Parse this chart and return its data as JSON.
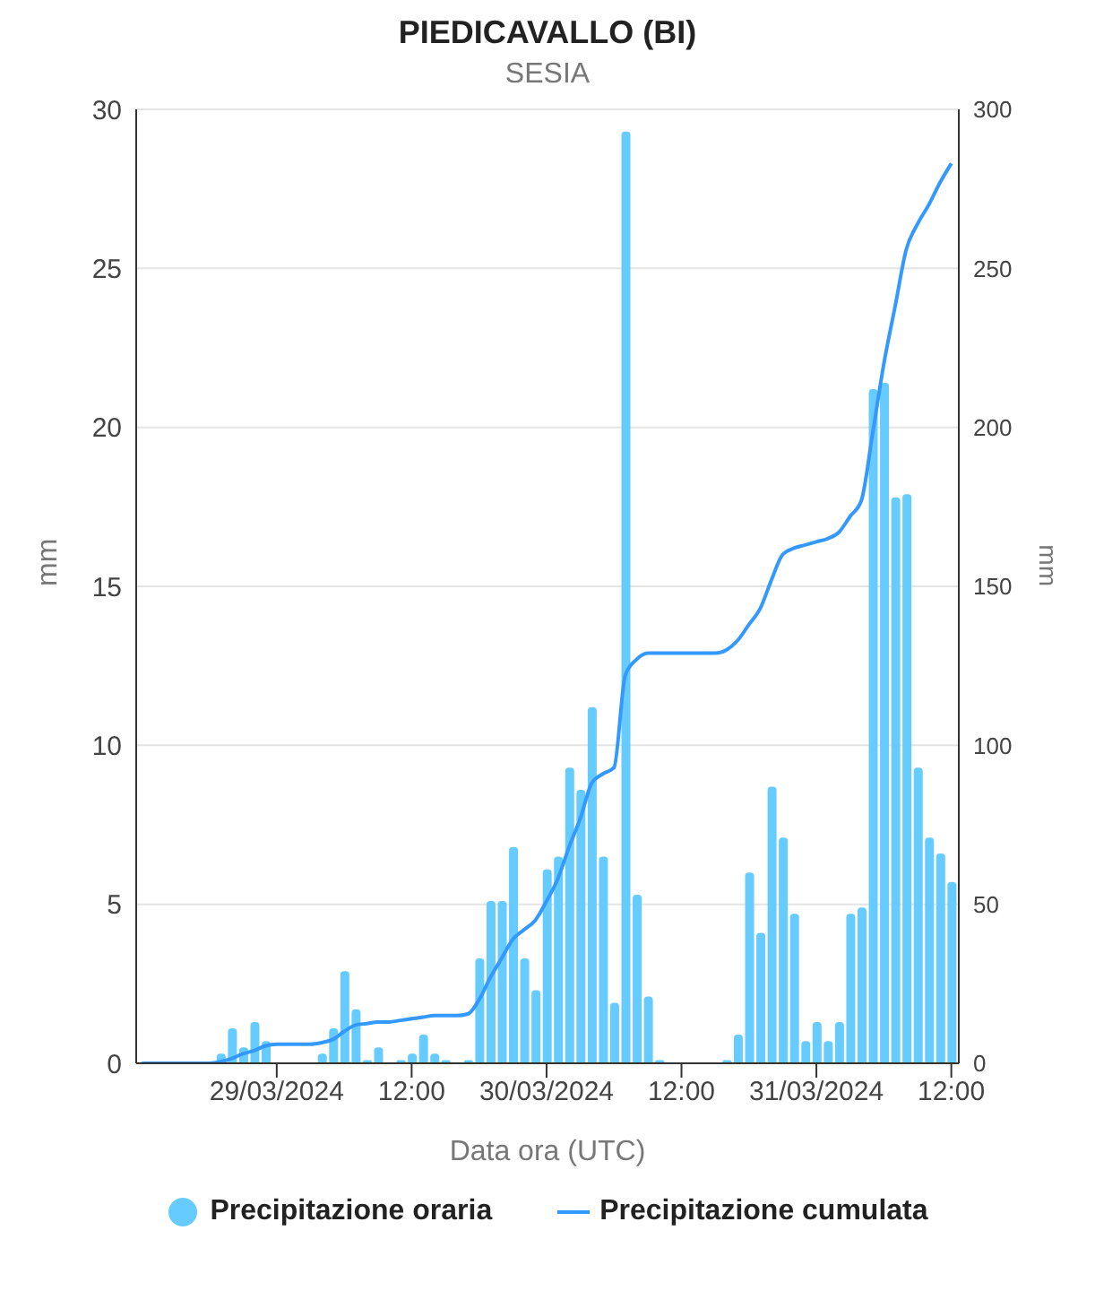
{
  "chart_data": {
    "type": "bar",
    "title": "PIEDICAVALLO (BI)",
    "subtitle": "SESIA",
    "xlabel": "Data ora (UTC)",
    "ylabel": "mm",
    "y2label": "mm",
    "x": [
      "2024-03-28T12:00",
      "2024-03-28T13:00",
      "2024-03-28T14:00",
      "2024-03-28T15:00",
      "2024-03-28T16:00",
      "2024-03-28T17:00",
      "2024-03-28T18:00",
      "2024-03-28T19:00",
      "2024-03-28T20:00",
      "2024-03-28T21:00",
      "2024-03-28T22:00",
      "2024-03-28T23:00",
      "2024-03-29T00:00",
      "2024-03-29T01:00",
      "2024-03-29T02:00",
      "2024-03-29T03:00",
      "2024-03-29T04:00",
      "2024-03-29T05:00",
      "2024-03-29T06:00",
      "2024-03-29T07:00",
      "2024-03-29T08:00",
      "2024-03-29T09:00",
      "2024-03-29T10:00",
      "2024-03-29T11:00",
      "2024-03-29T12:00",
      "2024-03-29T13:00",
      "2024-03-29T14:00",
      "2024-03-29T15:00",
      "2024-03-29T16:00",
      "2024-03-29T17:00",
      "2024-03-29T18:00",
      "2024-03-29T19:00",
      "2024-03-29T20:00",
      "2024-03-29T21:00",
      "2024-03-29T22:00",
      "2024-03-29T23:00",
      "2024-03-30T00:00",
      "2024-03-30T01:00",
      "2024-03-30T02:00",
      "2024-03-30T03:00",
      "2024-03-30T04:00",
      "2024-03-30T05:00",
      "2024-03-30T06:00",
      "2024-03-30T07:00",
      "2024-03-30T08:00",
      "2024-03-30T09:00",
      "2024-03-30T10:00",
      "2024-03-30T11:00",
      "2024-03-30T12:00",
      "2024-03-30T13:00",
      "2024-03-30T14:00",
      "2024-03-30T15:00",
      "2024-03-30T16:00",
      "2024-03-30T17:00",
      "2024-03-30T18:00",
      "2024-03-30T19:00",
      "2024-03-30T20:00",
      "2024-03-30T21:00",
      "2024-03-30T22:00",
      "2024-03-30T23:00",
      "2024-03-31T00:00",
      "2024-03-31T01:00",
      "2024-03-31T02:00",
      "2024-03-31T03:00",
      "2024-03-31T04:00",
      "2024-03-31T05:00",
      "2024-03-31T06:00",
      "2024-03-31T07:00",
      "2024-03-31T08:00",
      "2024-03-31T09:00",
      "2024-03-31T10:00",
      "2024-03-31T11:00",
      "2024-03-31T12:00"
    ],
    "series": [
      {
        "name": "Precipitazione oraria",
        "color": "#66ccff",
        "values": [
          0,
          0,
          0,
          0,
          0,
          0,
          0,
          0.3,
          1.1,
          0.5,
          1.3,
          0.7,
          0,
          0,
          0,
          0,
          0.3,
          1.1,
          2.9,
          1.7,
          0.1,
          0.5,
          0,
          0.1,
          0.3,
          0.9,
          0.3,
          0.1,
          0,
          0.1,
          3.3,
          5.1,
          5.1,
          6.8,
          3.3,
          2.3,
          6.1,
          6.5,
          9.3,
          8.6,
          11.2,
          6.5,
          1.9,
          29.3,
          5.3,
          2.1,
          0.1,
          0,
          0,
          0,
          0,
          0,
          0.1,
          0.9,
          6,
          4.1,
          8.7,
          7.1,
          4.7,
          0.7,
          1.3,
          0.7,
          1.3,
          4.7,
          4.9,
          21.2,
          21.4,
          17.8,
          17.9,
          9.3,
          7.1,
          6.6,
          5.7
        ]
      },
      {
        "name": "Precipitazione cumulata",
        "type": "line",
        "axis": "y2",
        "color": "#3399ff",
        "values": [
          0,
          0,
          0,
          0,
          0,
          0,
          0,
          0.5,
          1.5,
          3,
          4,
          5.5,
          6,
          6,
          6,
          6,
          6.5,
          7.5,
          10,
          12,
          12.5,
          13,
          13,
          13.5,
          14,
          14.5,
          15,
          15,
          15,
          15.5,
          20,
          27,
          33,
          39,
          42,
          45,
          51,
          58,
          68,
          77,
          88,
          91,
          93,
          122,
          127,
          129,
          129,
          129,
          129,
          129,
          129,
          129,
          130,
          133,
          138,
          143,
          152,
          160,
          162,
          163,
          164,
          165,
          167,
          172,
          177,
          198,
          220,
          238,
          256,
          264,
          270,
          277,
          283
        ]
      }
    ],
    "xlim": [
      "2024-03-28T11:30",
      "2024-03-31T12:40"
    ],
    "xticks": [
      {
        "value": "2024-03-29T00:00",
        "label": "29/03/2024"
      },
      {
        "value": "2024-03-29T12:00",
        "label": "12:00"
      },
      {
        "value": "2024-03-30T00:00",
        "label": "30/03/2024"
      },
      {
        "value": "2024-03-30T12:00",
        "label": "12:00"
      },
      {
        "value": "2024-03-31T00:00",
        "label": "31/03/2024"
      },
      {
        "value": "2024-03-31T12:00",
        "label": "12:00"
      }
    ],
    "ylim": [
      0,
      30
    ],
    "yticks": [
      0,
      5,
      10,
      15,
      20,
      25,
      30
    ],
    "y2lim": [
      0,
      300
    ],
    "y2ticks": [
      0,
      50,
      100,
      150,
      200,
      250,
      300
    ],
    "grid": "y",
    "legend": "bottom",
    "marker": "none"
  }
}
